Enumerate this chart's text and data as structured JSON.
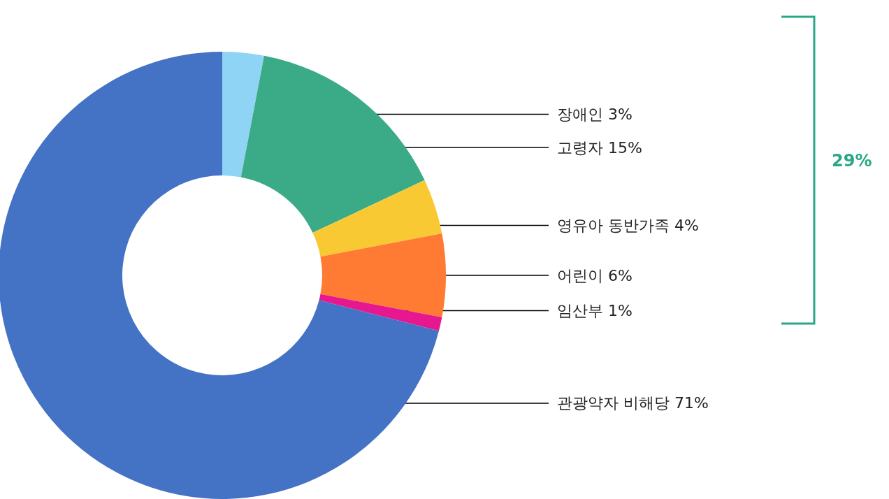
{
  "chart_data": {
    "type": "donut",
    "categories": [
      "장애인",
      "고령자",
      "영유아 동반가족",
      "어린이",
      "임산부",
      "관광약자 비해당"
    ],
    "values": [
      3,
      15,
      4,
      6,
      1,
      71
    ],
    "value_labels": [
      "3%",
      "15%",
      "4%",
      "6%",
      "1%",
      "71%"
    ],
    "colors": [
      "#8fd3f5",
      "#3aaa87",
      "#f9c934",
      "#ff7a33",
      "#e6178f",
      "#4472c4"
    ],
    "annotations": [
      "29%"
    ]
  }
}
